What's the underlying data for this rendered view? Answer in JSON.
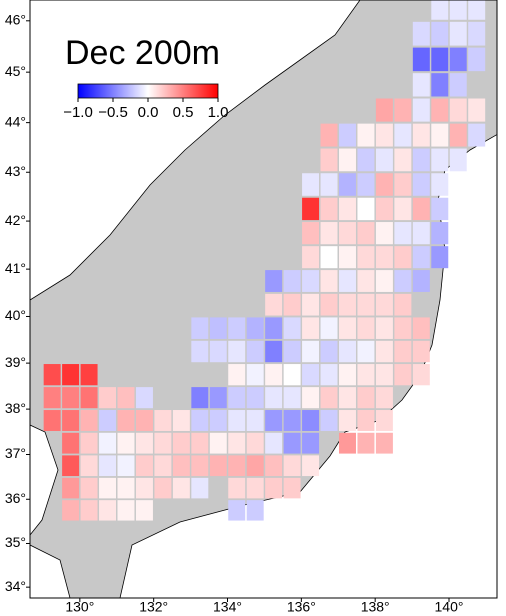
{
  "chart_data": {
    "type": "heatmap",
    "title": "Dec 200m",
    "xlim": [
      128.65,
      141.3
    ],
    "ylim": [
      33.75,
      46.4
    ],
    "xticks": [
      {
        "value": 130,
        "label": "130°"
      },
      {
        "value": 132,
        "label": "132°"
      },
      {
        "value": 134,
        "label": "134°"
      },
      {
        "value": 136,
        "label": "136°"
      },
      {
        "value": 138,
        "label": "138°"
      },
      {
        "value": 140,
        "label": "140°"
      }
    ],
    "yticks": [
      {
        "value": 34,
        "label": "34°"
      },
      {
        "value": 35,
        "label": "35°"
      },
      {
        "value": 36,
        "label": "36°"
      },
      {
        "value": 37,
        "label": "37°"
      },
      {
        "value": 38,
        "label": "38°"
      },
      {
        "value": 39,
        "label": "39°"
      },
      {
        "value": 40,
        "label": "40°"
      },
      {
        "value": 41,
        "label": "41°"
      },
      {
        "value": 42,
        "label": "42°"
      },
      {
        "value": 43,
        "label": "43°"
      },
      {
        "value": 44,
        "label": "44°"
      },
      {
        "value": 45,
        "label": "45°"
      },
      {
        "value": 46,
        "label": "46°"
      }
    ],
    "colorbar": {
      "lim": [
        -1,
        1
      ],
      "colors": [
        "#0000ff",
        "#ffffff",
        "#ff0000"
      ],
      "ticks": [
        {
          "value": -1,
          "label": "−1.0"
        },
        {
          "value": -0.5,
          "label": "−0.5"
        },
        {
          "value": 0,
          "label": "0.0"
        },
        {
          "value": 0.5,
          "label": "0.5"
        },
        {
          "value": 1,
          "label": "1.0"
        }
      ]
    },
    "rows": [
      {
        "lat": 46.25,
        "lon": [
          139.75,
          140.25,
          140.75
        ],
        "values": [
          -0.1,
          -0.1,
          -0.1
        ]
      },
      {
        "lat": 45.75,
        "lon": [
          139.25,
          139.75,
          140.25,
          140.75
        ],
        "values": [
          -0.15,
          -0.2,
          -0.1,
          -0.15
        ]
      },
      {
        "lat": 45.25,
        "lon": [
          139.25,
          139.75,
          140.25,
          140.75
        ],
        "values": [
          -0.6,
          -0.6,
          -0.5,
          -0.2
        ]
      },
      {
        "lat": 44.75,
        "lon": [
          139.25,
          139.75,
          140.25
        ],
        "values": [
          -0.1,
          -0.5,
          -0.2
        ]
      },
      {
        "lat": 44.25,
        "lon": [
          138.25,
          138.75,
          139.25,
          139.75,
          140.25,
          140.75
        ],
        "values": [
          0.35,
          0.3,
          -0.1,
          0.3,
          0.15,
          0.1
        ]
      },
      {
        "lat": 43.75,
        "lon": [
          136.75,
          137.25,
          137.75,
          138.25,
          138.75,
          139.25,
          139.75,
          140.25,
          140.75
        ],
        "values": [
          0.3,
          -0.2,
          0.05,
          0.1,
          -0.1,
          0.1,
          0.05,
          0.3,
          -0.15
        ]
      },
      {
        "lat": 43.25,
        "lon": [
          136.75,
          137.25,
          137.75,
          138.25,
          138.75,
          139.25,
          139.75,
          140.25
        ],
        "values": [
          0.2,
          0.05,
          -0.2,
          -0.1,
          0.1,
          -0.2,
          -0.1,
          -0.1
        ]
      },
      {
        "lat": 42.75,
        "lon": [
          136.25,
          136.75,
          137.25,
          137.75,
          138.25,
          138.75,
          139.25,
          139.75
        ],
        "values": [
          -0.1,
          -0.1,
          -0.3,
          -0.2,
          0.3,
          0.2,
          -0.2,
          -0.1
        ]
      },
      {
        "lat": 42.25,
        "lon": [
          136.25,
          136.75,
          137.25,
          137.75,
          138.25,
          138.75,
          139.25,
          139.75
        ],
        "values": [
          0.8,
          0.2,
          0.1,
          0,
          0.2,
          0.1,
          0.3,
          -0.2
        ]
      },
      {
        "lat": 41.75,
        "lon": [
          136.25,
          136.75,
          137.25,
          137.75,
          138.25,
          138.75,
          139.25,
          139.75
        ],
        "values": [
          0.25,
          0.1,
          0.15,
          0.2,
          0.05,
          -0.1,
          -0.1,
          -0.3
        ]
      },
      {
        "lat": 41.25,
        "lon": [
          136.25,
          136.75,
          137.25,
          137.75,
          138.25,
          138.75,
          139.25,
          139.75
        ],
        "values": [
          0.15,
          0,
          0.05,
          0.15,
          0.15,
          0.2,
          -0.2,
          -0.4
        ]
      },
      {
        "lat": 40.75,
        "lon": [
          135.25,
          135.75,
          136.25,
          136.75,
          137.25,
          137.75,
          138.25,
          138.75,
          139.25
        ],
        "values": [
          -0.4,
          -0.2,
          -0.15,
          0.1,
          -0.1,
          0.1,
          0.05,
          -0.2,
          -0.3
        ]
      },
      {
        "lat": 40.25,
        "lon": [
          135.25,
          135.75,
          136.25,
          136.75,
          137.25,
          137.75,
          138.25,
          138.75
        ],
        "values": [
          0.15,
          0.2,
          0.1,
          0.2,
          0.15,
          0.15,
          0.15,
          0.2
        ]
      },
      {
        "lat": 39.75,
        "lon": [
          133.25,
          133.75,
          134.25,
          134.75,
          135.25,
          135.75,
          136.25,
          136.75,
          137.25,
          137.75,
          138.25,
          138.75,
          139.25
        ],
        "values": [
          -0.2,
          -0.25,
          -0.2,
          -0.3,
          -0.4,
          -0.15,
          0.1,
          -0.05,
          0.1,
          0.15,
          0.1,
          0.2,
          0.25
        ]
      },
      {
        "lat": 39.25,
        "lon": [
          133.25,
          133.75,
          134.25,
          134.75,
          135.25,
          135.75,
          136.25,
          136.75,
          137.25,
          137.75,
          138.25,
          138.75,
          139.25
        ],
        "values": [
          -0.15,
          -0.15,
          -0.1,
          -0.2,
          -0.5,
          -0.2,
          -0.05,
          -0.2,
          -0.1,
          -0.05,
          0.1,
          0.2,
          0.2
        ]
      },
      {
        "lat": 38.75,
        "lon": [
          129.25,
          129.75,
          130.25,
          134.25,
          134.75,
          135.25,
          135.75,
          136.25,
          136.75,
          137.25,
          137.75,
          138.25,
          138.75,
          139.25
        ],
        "values": [
          0.7,
          0.8,
          0.75,
          0.05,
          -0.05,
          0.05,
          0,
          -0.15,
          -0.1,
          0.05,
          0.1,
          0.1,
          0.2,
          0.15
        ]
      },
      {
        "lat": 38.25,
        "lon": [
          129.25,
          129.75,
          130.25,
          130.75,
          131.25,
          131.75,
          133.25,
          133.75,
          134.25,
          134.75,
          135.25,
          135.75,
          136.25,
          136.75,
          137.25,
          137.75,
          138.25
        ],
        "values": [
          0.5,
          0.5,
          0.55,
          0.2,
          0.25,
          -0.15,
          -0.5,
          -0.4,
          -0.2,
          -0.2,
          -0.1,
          -0.1,
          0.05,
          0.2,
          0.1,
          0.2,
          0.15
        ]
      },
      {
        "lat": 37.75,
        "lon": [
          129.25,
          129.75,
          130.25,
          130.75,
          131.25,
          131.75,
          132.25,
          132.75,
          133.25,
          133.75,
          134.25,
          134.75,
          135.25,
          135.75,
          136.25,
          136.75,
          137.25,
          137.75,
          138.25
        ],
        "values": [
          0.55,
          0.55,
          0.3,
          -0.2,
          0.3,
          0.3,
          0.15,
          0.1,
          -0.2,
          -0.2,
          -0.1,
          -0.1,
          -0.4,
          -0.4,
          -0.45,
          -0.2,
          0.1,
          0.2,
          0.15
        ]
      },
      {
        "lat": 37.25,
        "lon": [
          129.75,
          130.25,
          130.75,
          131.25,
          131.75,
          132.25,
          132.75,
          133.25,
          133.75,
          134.25,
          134.75,
          135.25,
          135.75,
          136.25,
          137.25,
          137.75,
          138.25
        ],
        "values": [
          0.55,
          0.2,
          -0.05,
          0.05,
          0.1,
          0.15,
          0.2,
          0.2,
          0.05,
          0.1,
          0.15,
          -0.1,
          -0.4,
          -0.4,
          0.4,
          0.3,
          0.3
        ]
      },
      {
        "lat": 36.75,
        "lon": [
          129.75,
          130.25,
          130.75,
          131.25,
          131.75,
          132.25,
          132.75,
          133.25,
          133.75,
          134.25,
          134.75,
          135.25,
          135.75,
          136.25
        ],
        "values": [
          0.65,
          0.15,
          -0.1,
          -0.05,
          0.2,
          0.15,
          0.25,
          0.25,
          0.3,
          0.3,
          0.35,
          0.25,
          0.15,
          0.1
        ]
      },
      {
        "lat": 36.25,
        "lon": [
          129.75,
          130.25,
          130.75,
          131.25,
          131.75,
          132.25,
          132.75,
          133.25,
          134.25,
          134.75,
          135.25,
          135.75
        ],
        "values": [
          0.4,
          0.2,
          0.05,
          0.05,
          0.1,
          0.2,
          0.1,
          -0.1,
          0.15,
          0.15,
          0.2,
          0.2
        ]
      },
      {
        "lat": 35.75,
        "lon": [
          129.75,
          130.25,
          130.75,
          131.25,
          131.75,
          134.25,
          134.75
        ],
        "values": [
          0.3,
          0.2,
          0.1,
          0.05,
          0.05,
          -0.2,
          -0.2
        ]
      }
    ]
  }
}
